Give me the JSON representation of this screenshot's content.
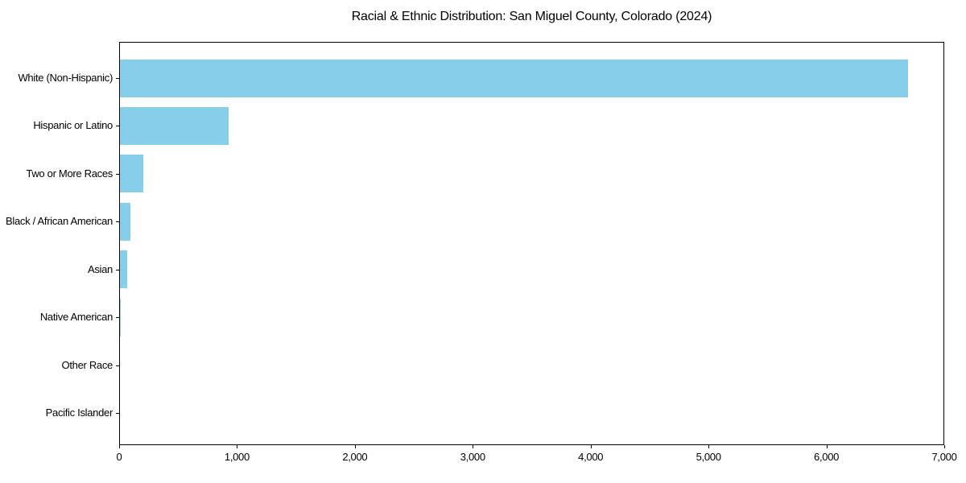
{
  "chart_data": {
    "type": "bar",
    "orientation": "horizontal",
    "title": "Racial & Ethnic Distribution: San Miguel County, Colorado (2024)",
    "categories": [
      "White (Non-Hispanic)",
      "Hispanic or Latino",
      "Two or More Races",
      "Black / African American",
      "Asian",
      "Native American",
      "Other Race",
      "Pacific Islander"
    ],
    "values": [
      6685,
      920,
      195,
      92,
      60,
      10,
      0,
      0
    ],
    "xlabel": "",
    "ylabel": "",
    "xlim": [
      0,
      7000
    ],
    "xticks": [
      0,
      1000,
      2000,
      3000,
      4000,
      5000,
      6000,
      7000
    ],
    "xtick_labels": [
      "0",
      "1,000",
      "2,000",
      "3,000",
      "4,000",
      "5,000",
      "6,000",
      "7,000"
    ],
    "grid": false,
    "legend": null,
    "bar_color": "#87CEEB",
    "axis_color": "#000000",
    "text_color": "#000000",
    "background_color": "#ffffff"
  }
}
